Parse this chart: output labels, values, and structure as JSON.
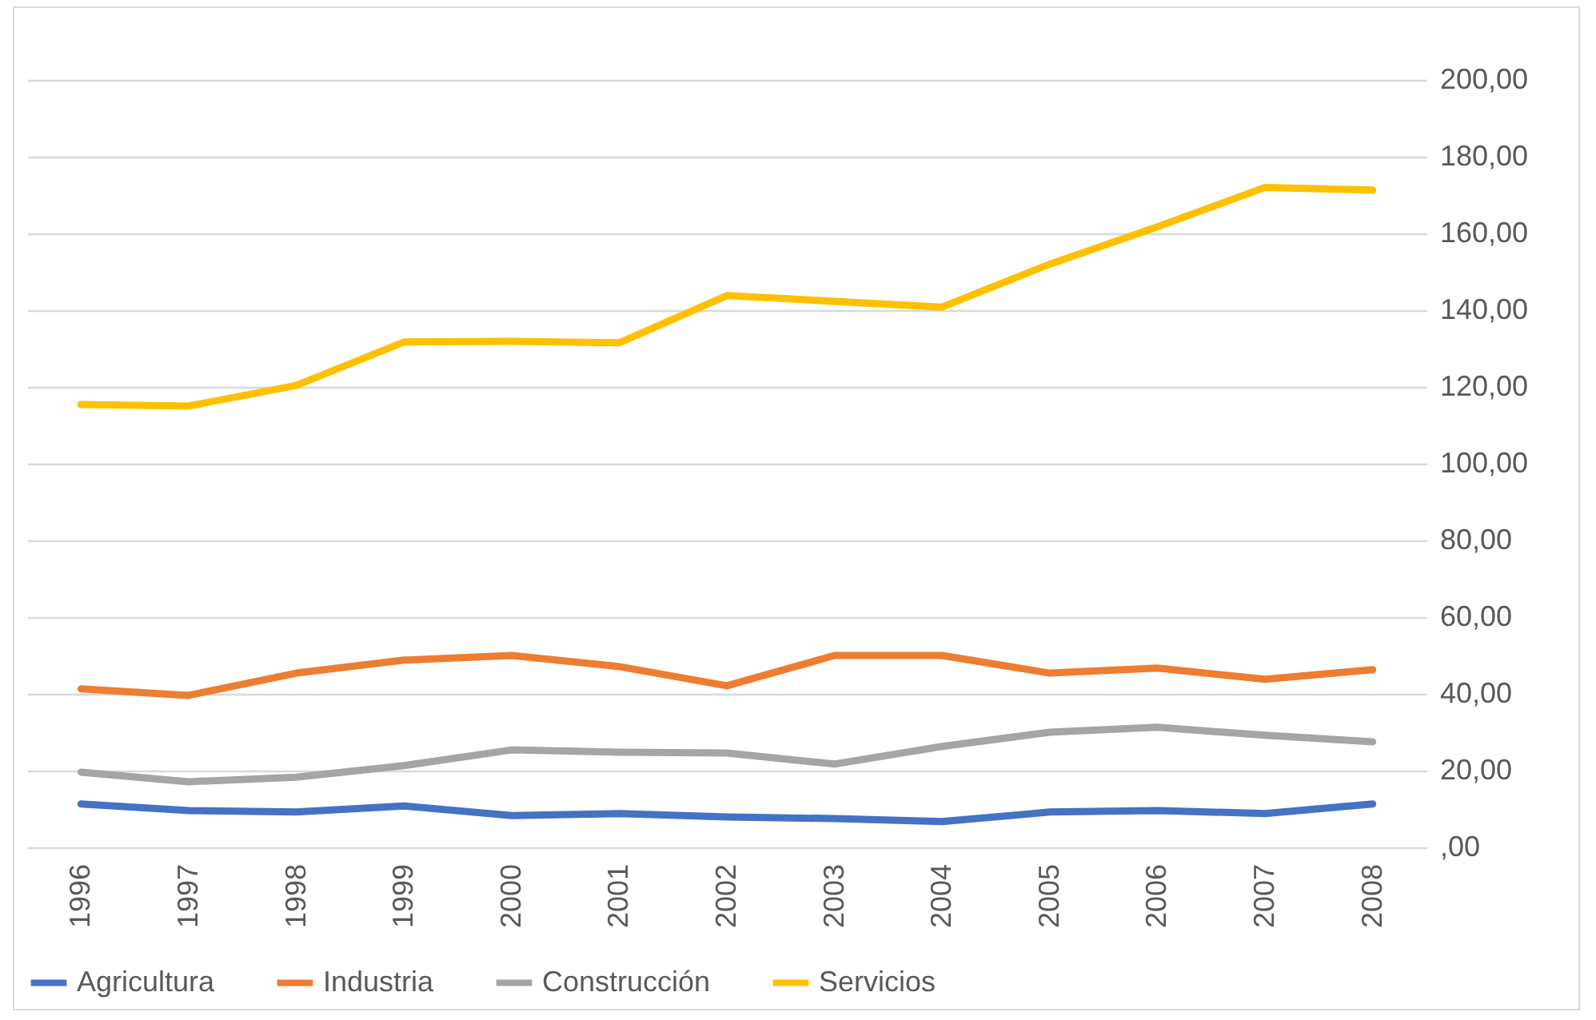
{
  "chart_data": {
    "type": "line",
    "categories": [
      "1996",
      "1997",
      "1998",
      "1999",
      "2000",
      "2001",
      "2002",
      "2003",
      "2004",
      "2005",
      "2006",
      "2007",
      "2008"
    ],
    "series": [
      {
        "name": "Agricultura",
        "color": "#4472c4",
        "values": [
          11.3,
          9.6,
          9.2,
          10.8,
          8.3,
          8.8,
          7.9,
          7.5,
          6.7,
          9.2,
          9.6,
          8.8,
          11.3
        ]
      },
      {
        "name": "Industria",
        "color": "#ed7d31",
        "values": [
          41.3,
          39.6,
          45.4,
          48.8,
          50,
          47.1,
          42.1,
          50,
          50,
          45.4,
          46.7,
          43.8,
          46.3
        ]
      },
      {
        "name": "Construcción",
        "color": "#a5a5a5",
        "values": [
          19.6,
          17.1,
          18.3,
          21.3,
          25.4,
          24.8,
          24.6,
          21.7,
          26.3,
          30,
          31.3,
          29.2,
          27.5
        ]
      },
      {
        "name": "Servicios",
        "color": "#ffc000",
        "values": [
          115.4,
          115,
          120.4,
          131.7,
          131.9,
          131.5,
          143.8,
          142.3,
          140.8,
          152,
          161.7,
          172,
          171.3
        ]
      }
    ],
    "ylim": [
      0,
      200
    ],
    "yticks": [
      {
        "value": 0,
        "label": ",00"
      },
      {
        "value": 20,
        "label": "20,00"
      },
      {
        "value": 40,
        "label": "40,00"
      },
      {
        "value": 60,
        "label": "60,00"
      },
      {
        "value": 80,
        "label": "80,00"
      },
      {
        "value": 100,
        "label": "100,00"
      },
      {
        "value": 120,
        "label": "120,00"
      },
      {
        "value": 140,
        "label": "140,00"
      },
      {
        "value": 160,
        "label": "160,00"
      },
      {
        "value": 180,
        "label": "180,00"
      },
      {
        "value": 200,
        "label": "200,00"
      }
    ],
    "grid": "y",
    "legend": "bottom",
    "marker": "none",
    "line_style": "solid"
  }
}
